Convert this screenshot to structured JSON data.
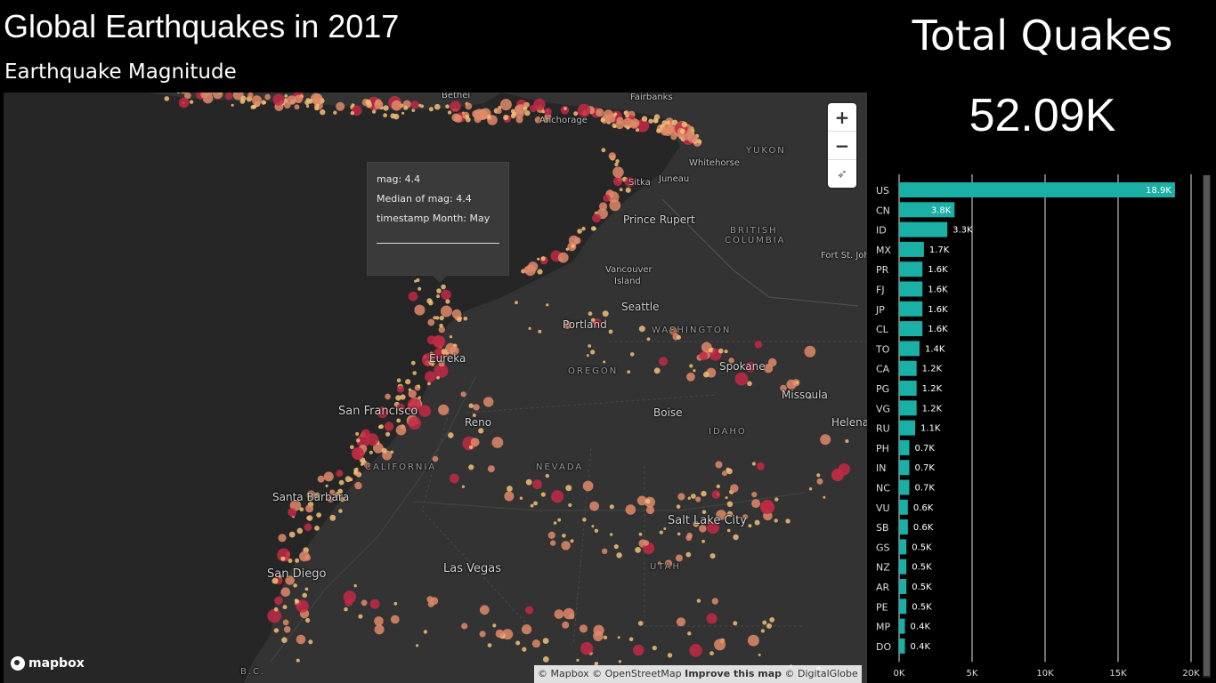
{
  "header": {
    "title": "Global Earthquakes in 2017",
    "subtitle": "Earthquake Magnitude"
  },
  "kpi": {
    "label": "Total Quakes",
    "value": "52.09K"
  },
  "map": {
    "places": {
      "bethel": "Bethel",
      "fairbanks": "Fairbanks",
      "anchorage": "Anchorage",
      "yukon": "YUKON",
      "whitehorse": "Whitehorse",
      "juneau": "Juneau",
      "sitka": "Sitka",
      "prince_rupert": "Prince Rupert",
      "british_columbia_1": "BRITISH",
      "british_columbia_2": "COLUMBIA",
      "fort_st_john": "Fort St. Joh",
      "vancouver_1": "Vancouver",
      "vancouver_2": "Island",
      "seattle": "Seattle",
      "portland": "Portland",
      "washington": "WASHINGTON",
      "oregon": "OREGON",
      "spokane": "Spokane",
      "missoula": "Missoula",
      "helena": "Helena",
      "eureka": "Eureka",
      "boise": "Boise",
      "san_francisco": "San Francisco",
      "reno": "Reno",
      "idaho": "IDAHO",
      "california": "CALIFORNIA",
      "nevada": "NEVADA",
      "salt_lake_city": "Salt Lake City",
      "santa_barbara": "Santa Barbara",
      "las_vegas": "Las Vegas",
      "utah": "UTAH",
      "san_diego": "San Diego",
      "bc": "B.C."
    },
    "zoom_in": "+",
    "zoom_out": "−",
    "compass": "➶",
    "logo": "mapbox",
    "attribution": {
      "mapbox": "© Mapbox",
      "osm": "© OpenStreetMap",
      "improve": "Improve this map",
      "digitalglobe": "© DigitalGlobe"
    },
    "colors": {
      "land": "#333333",
      "water": "#262626",
      "quake_small": "#f2c078",
      "quake_mid": "#e08a6a",
      "quake_large": "#c22a45"
    }
  },
  "tooltip": {
    "line1": "mag: 4.4",
    "line2": "Median of mag: 4.4",
    "line3": "timestamp Month: May"
  },
  "chart_data": {
    "type": "bar",
    "orientation": "horizontal",
    "categories": [
      "US",
      "CN",
      "ID",
      "MX",
      "PR",
      "FJ",
      "JP",
      "CL",
      "TO",
      "CA",
      "PG",
      "VG",
      "RU",
      "PH",
      "IN",
      "NC",
      "VU",
      "SB",
      "GS",
      "NZ",
      "AR",
      "PE",
      "MP",
      "DO"
    ],
    "values": [
      18900,
      3800,
      3300,
      1700,
      1600,
      1600,
      1600,
      1600,
      1400,
      1200,
      1200,
      1200,
      1100,
      700,
      700,
      700,
      600,
      600,
      500,
      500,
      500,
      500,
      400,
      400
    ],
    "data_labels": [
      "18.9K",
      "3.8K",
      "3.3K",
      "1.7K",
      "1.6K",
      "1.6K",
      "1.6K",
      "1.6K",
      "1.4K",
      "1.2K",
      "1.2K",
      "1.2K",
      "1.1K",
      "0.7K",
      "0.7K",
      "0.7K",
      "0.6K",
      "0.6K",
      "0.5K",
      "0.5K",
      "0.5K",
      "0.5K",
      "0.4K",
      "0.4K"
    ],
    "x_ticks": [
      0,
      5000,
      10000,
      15000,
      20000
    ],
    "x_tick_labels": [
      "0K",
      "5K",
      "10K",
      "15K",
      "20K"
    ],
    "xlim": [
      0,
      20000
    ],
    "grid": true,
    "bar_color": "#1ab0a6",
    "title": "",
    "xlabel": "",
    "ylabel": ""
  }
}
